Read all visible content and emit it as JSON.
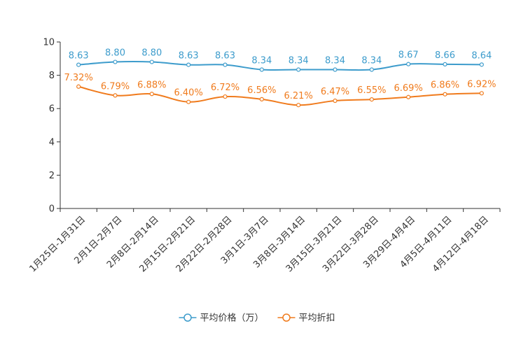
{
  "chart_data": {
    "type": "line",
    "title": "",
    "xlabel": "",
    "ylabel": "",
    "ylim": [
      0,
      10
    ],
    "yticks": [
      0,
      2,
      4,
      6,
      8,
      10
    ],
    "grid": false,
    "legend_position": "bottom-center",
    "categories": [
      "1月25日-1月31日",
      "2月1日-2月7日",
      "2月8日-2月14日",
      "2月15日-2月21日",
      "2月22日-2月28日",
      "3月1日-3月7日",
      "3月8日-3月14日",
      "3月15日-3月21日",
      "3月22日-3月28日",
      "3月29日-4月4日",
      "4月5日-4月11日",
      "4月12日-4月18日"
    ],
    "series": [
      {
        "name": "平均价格（万）",
        "color": "#3d9ccc",
        "values": [
          8.63,
          8.8,
          8.8,
          8.63,
          8.63,
          8.34,
          8.34,
          8.34,
          8.34,
          8.67,
          8.66,
          8.64
        ],
        "labels": [
          "8.63",
          "8.80",
          "8.80",
          "8.63",
          "8.63",
          "8.34",
          "8.34",
          "8.34",
          "8.34",
          "8.67",
          "8.66",
          "8.64"
        ]
      },
      {
        "name": "平均折扣",
        "color": "#f07b1d",
        "values": [
          7.32,
          6.79,
          6.88,
          6.4,
          6.72,
          6.56,
          6.21,
          6.47,
          6.55,
          6.69,
          6.86,
          6.92
        ],
        "labels": [
          "7.32%",
          "6.79%",
          "6.88%",
          "6.40%",
          "6.72%",
          "6.56%",
          "6.21%",
          "6.47%",
          "6.55%",
          "6.69%",
          "6.86%",
          "6.92%"
        ]
      }
    ]
  }
}
